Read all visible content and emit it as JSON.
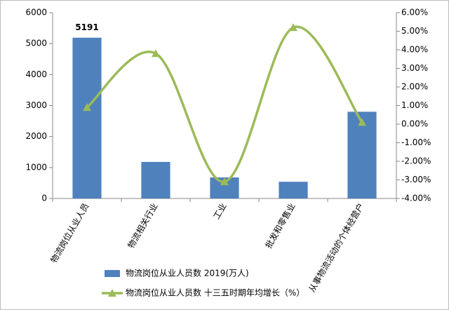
{
  "chart_data": {
    "type": "bar-line",
    "categories": [
      "物流岗位从业人员",
      "物流相关行业",
      "工业",
      "批发和零售业",
      "从事物流活动的个体经营户"
    ],
    "series": [
      {
        "name": "物流岗位从业人员数 2019(万人)",
        "type": "bar",
        "color": "#4f81bd",
        "values": [
          5191,
          1180,
          680,
          540,
          2800
        ],
        "data_labels": "max"
      },
      {
        "name": "物流岗位从业人员数 十三五时期年均增长（%）",
        "type": "line",
        "axis": "y2",
        "color": "#9bbb59",
        "values": [
          0.9,
          3.8,
          -3.1,
          5.2,
          0.1
        ]
      }
    ],
    "ylim": [
      0,
      6000
    ],
    "yticks": [
      0,
      1000,
      2000,
      3000,
      4000,
      5000,
      6000
    ],
    "y2lim": [
      -4,
      6
    ],
    "y2ticks": [
      {
        "value": -4,
        "label": "-4.00%"
      },
      {
        "value": -3,
        "label": "-3.00%"
      },
      {
        "value": -2,
        "label": "-2.00%"
      },
      {
        "value": -1,
        "label": "-1.00%"
      },
      {
        "value": 0,
        "label": "0.00%"
      },
      {
        "value": 1,
        "label": "1.00%"
      },
      {
        "value": 2,
        "label": "2.00%"
      },
      {
        "value": 3,
        "label": "3.00%"
      },
      {
        "value": 4,
        "label": "4.00%"
      },
      {
        "value": 5,
        "label": "5.00%"
      },
      {
        "value": 6,
        "label": "6.00%"
      }
    ],
    "grid": false,
    "legend": "bottom"
  }
}
